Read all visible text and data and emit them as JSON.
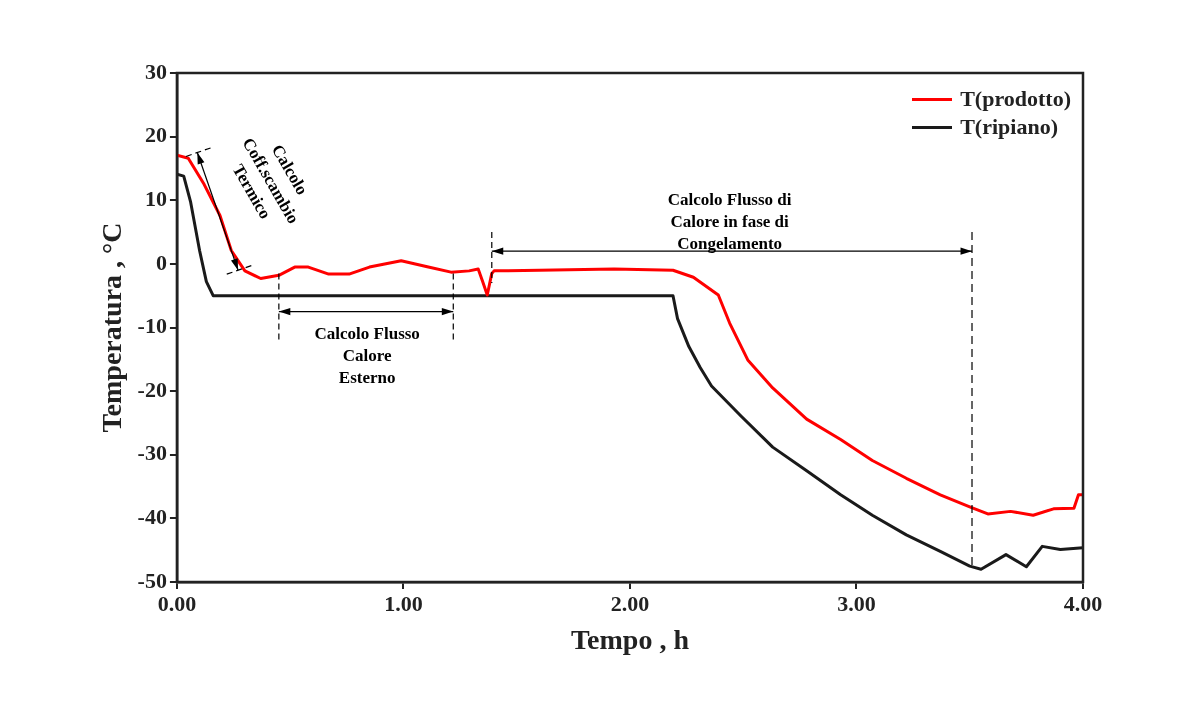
{
  "chart_data": {
    "type": "line",
    "xlabel": "Tempo , h",
    "ylabel": "Temperatura , °C",
    "xlim": [
      0,
      4
    ],
    "xticks": [
      {
        "value": 0,
        "label": "0.00"
      },
      {
        "value": 1,
        "label": "1.00"
      },
      {
        "value": 2,
        "label": "2.00"
      },
      {
        "value": 3,
        "label": "3.00"
      },
      {
        "value": 4,
        "label": "4.00"
      }
    ],
    "ylim": [
      -50,
      30
    ],
    "yticks": [
      -50,
      -40,
      -30,
      -20,
      -10,
      0,
      10,
      20,
      30
    ],
    "ref_lines": [
      {
        "axis": "x",
        "value": 3.51,
        "line_style": "dashed",
        "color": "#000000"
      }
    ],
    "grid": false,
    "legend": "top right",
    "marker": "none",
    "line_style": "solid",
    "series": [
      {
        "name": "T(prodotto)",
        "color": "#ff0000",
        "x": [
          0,
          0.05,
          0.12,
          0.19,
          0.24,
          0.3,
          0.37,
          0.45,
          0.52,
          0.58,
          0.67,
          0.76,
          0.85,
          0.99,
          1.11,
          1.21,
          1.29,
          1.33,
          1.35,
          1.37,
          1.39,
          1.4,
          1.6,
          1.93,
          2.19,
          2.28,
          2.39,
          2.44,
          2.52,
          2.63,
          2.78,
          2.93,
          3.07,
          3.22,
          3.37,
          3.5,
          3.58,
          3.68,
          3.78,
          3.87,
          3.96,
          3.98,
          4.0
        ],
        "values": [
          17.1,
          16.6,
          12.5,
          7.6,
          2.1,
          -1.1,
          -2.3,
          -1.8,
          -0.5,
          -0.5,
          -1.6,
          -1.6,
          -0.5,
          0.5,
          -0.5,
          -1.3,
          -1.1,
          -0.8,
          -2.8,
          -4.9,
          -1.5,
          -1.1,
          -1.0,
          -0.8,
          -1.0,
          -2.1,
          -4.9,
          -9.3,
          -15.1,
          -19.5,
          -24.4,
          -27.6,
          -30.9,
          -33.7,
          -36.3,
          -38.2,
          -39.3,
          -38.9,
          -39.5,
          -38.5,
          -38.4,
          -36.3,
          -36.3
        ]
      },
      {
        "name": "T(ripiano)",
        "color": "#1a1a1a",
        "x": [
          0,
          0.03,
          0.06,
          0.1,
          0.13,
          0.16,
          1.0,
          2.19,
          2.21,
          2.26,
          2.31,
          2.36,
          2.49,
          2.63,
          2.78,
          2.93,
          3.07,
          3.22,
          3.37,
          3.5,
          3.55,
          3.66,
          3.75,
          3.82,
          3.9,
          4.0
        ],
        "values": [
          14.1,
          13.8,
          9.8,
          2.1,
          -2.8,
          -5,
          -5,
          -5,
          -8.6,
          -13,
          -16.3,
          -19.2,
          -23.9,
          -28.8,
          -32.5,
          -36.3,
          -39.5,
          -42.6,
          -45.2,
          -47.5,
          -48,
          -45.7,
          -47.6,
          -44.4,
          -44.9,
          -44.6
        ]
      }
    ],
    "annotations": [
      "Calcolo Coff.scambio Termico",
      "Calcolo Flusso Calore Esterno",
      "Calcolo Flusso di Calore in fase di Congelamento"
    ]
  }
}
